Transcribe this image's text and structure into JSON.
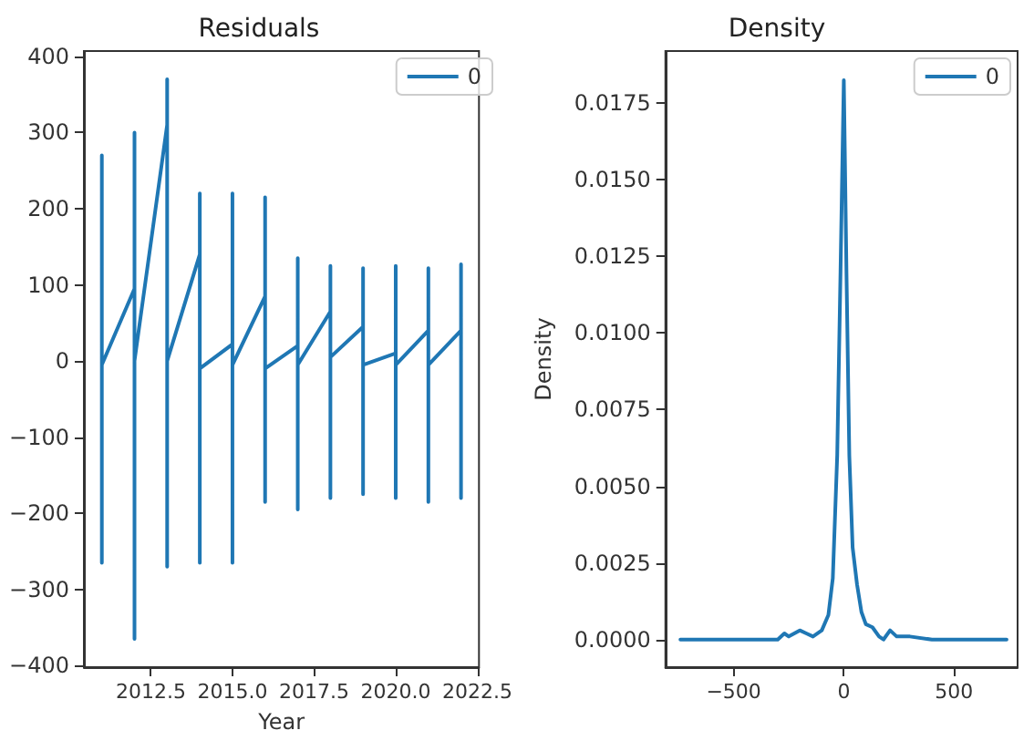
{
  "chart_data": [
    {
      "type": "line",
      "title": "Residuals",
      "xlabel": "Year",
      "legend": "top right",
      "xlim": [
        2010.45,
        2022.55
      ],
      "ylim": [
        -402,
        407
      ],
      "xticks": [
        {
          "value": 2012.5,
          "label": "2012.5"
        },
        {
          "value": 2015,
          "label": "2015.0"
        },
        {
          "value": 2017.5,
          "label": "2017.5"
        },
        {
          "value": 2020,
          "label": "2020.0"
        },
        {
          "value": 2022.5,
          "label": "2022.5"
        }
      ],
      "yticks": [
        -400,
        -300,
        -200,
        -100,
        0,
        100,
        200,
        300,
        400
      ],
      "series": [
        {
          "name": "0",
          "color": "#1f77b4",
          "x": [
            2011,
            2011,
            2011,
            2012,
            2012,
            2012,
            2012,
            2013,
            2013,
            2013,
            2013,
            2014,
            2014,
            2014,
            2014,
            2015,
            2015,
            2015,
            2015,
            2016,
            2016,
            2016,
            2016,
            2017,
            2017,
            2017,
            2017,
            2018,
            2018,
            2018,
            2018,
            2019,
            2019,
            2019,
            2019,
            2020,
            2020,
            2020,
            2020,
            2021,
            2021,
            2021,
            2021,
            2022,
            2022,
            2022
          ],
          "values": [
            270,
            -265,
            -5,
            95,
            300,
            -365,
            0,
            310,
            370,
            -270,
            0,
            140,
            220,
            -265,
            -10,
            22,
            220,
            -265,
            -5,
            85,
            215,
            -185,
            -10,
            20,
            135,
            -195,
            -5,
            65,
            125,
            -180,
            5,
            45,
            122,
            -175,
            -5,
            10,
            125,
            -180,
            -5,
            40,
            122,
            -185,
            -5,
            40,
            127,
            -180
          ]
        }
      ]
    },
    {
      "type": "line",
      "title": "Density",
      "ylabel": "Density",
      "legend": "top right",
      "xlim": [
        -810,
        789
      ],
      "ylim": [
        -0.0009,
        0.0192
      ],
      "xticks": [
        -500,
        0,
        500
      ],
      "yticks": [
        {
          "value": 0,
          "label": "0.0000"
        },
        {
          "value": 0.0025,
          "label": "0.0025"
        },
        {
          "value": 0.005,
          "label": "0.0050"
        },
        {
          "value": 0.0075,
          "label": "0.0075"
        },
        {
          "value": 0.01,
          "label": "0.0100"
        },
        {
          "value": 0.0125,
          "label": "0.0125"
        },
        {
          "value": 0.015,
          "label": "0.0150"
        },
        {
          "value": 0.0175,
          "label": "0.0175"
        }
      ],
      "series": [
        {
          "name": "0",
          "color": "#1f77b4",
          "x": [
            -742,
            -300,
            -270,
            -250,
            -200,
            -170,
            -140,
            -100,
            -70,
            -50,
            -30,
            -15,
            0,
            12,
            25,
            40,
            60,
            80,
            100,
            130,
            160,
            180,
            210,
            240,
            300,
            400,
            739
          ],
          "values": [
            0,
            0,
            0.0002,
            0.0001,
            0.0003,
            0.0002,
            0.0001,
            0.0003,
            0.0008,
            0.002,
            0.006,
            0.012,
            0.01825,
            0.012,
            0.006,
            0.003,
            0.0018,
            0.0009,
            0.0005,
            0.0004,
            0.0001,
            0,
            0.0003,
            0.0001,
            0.0001,
            0,
            0
          ]
        }
      ]
    }
  ]
}
